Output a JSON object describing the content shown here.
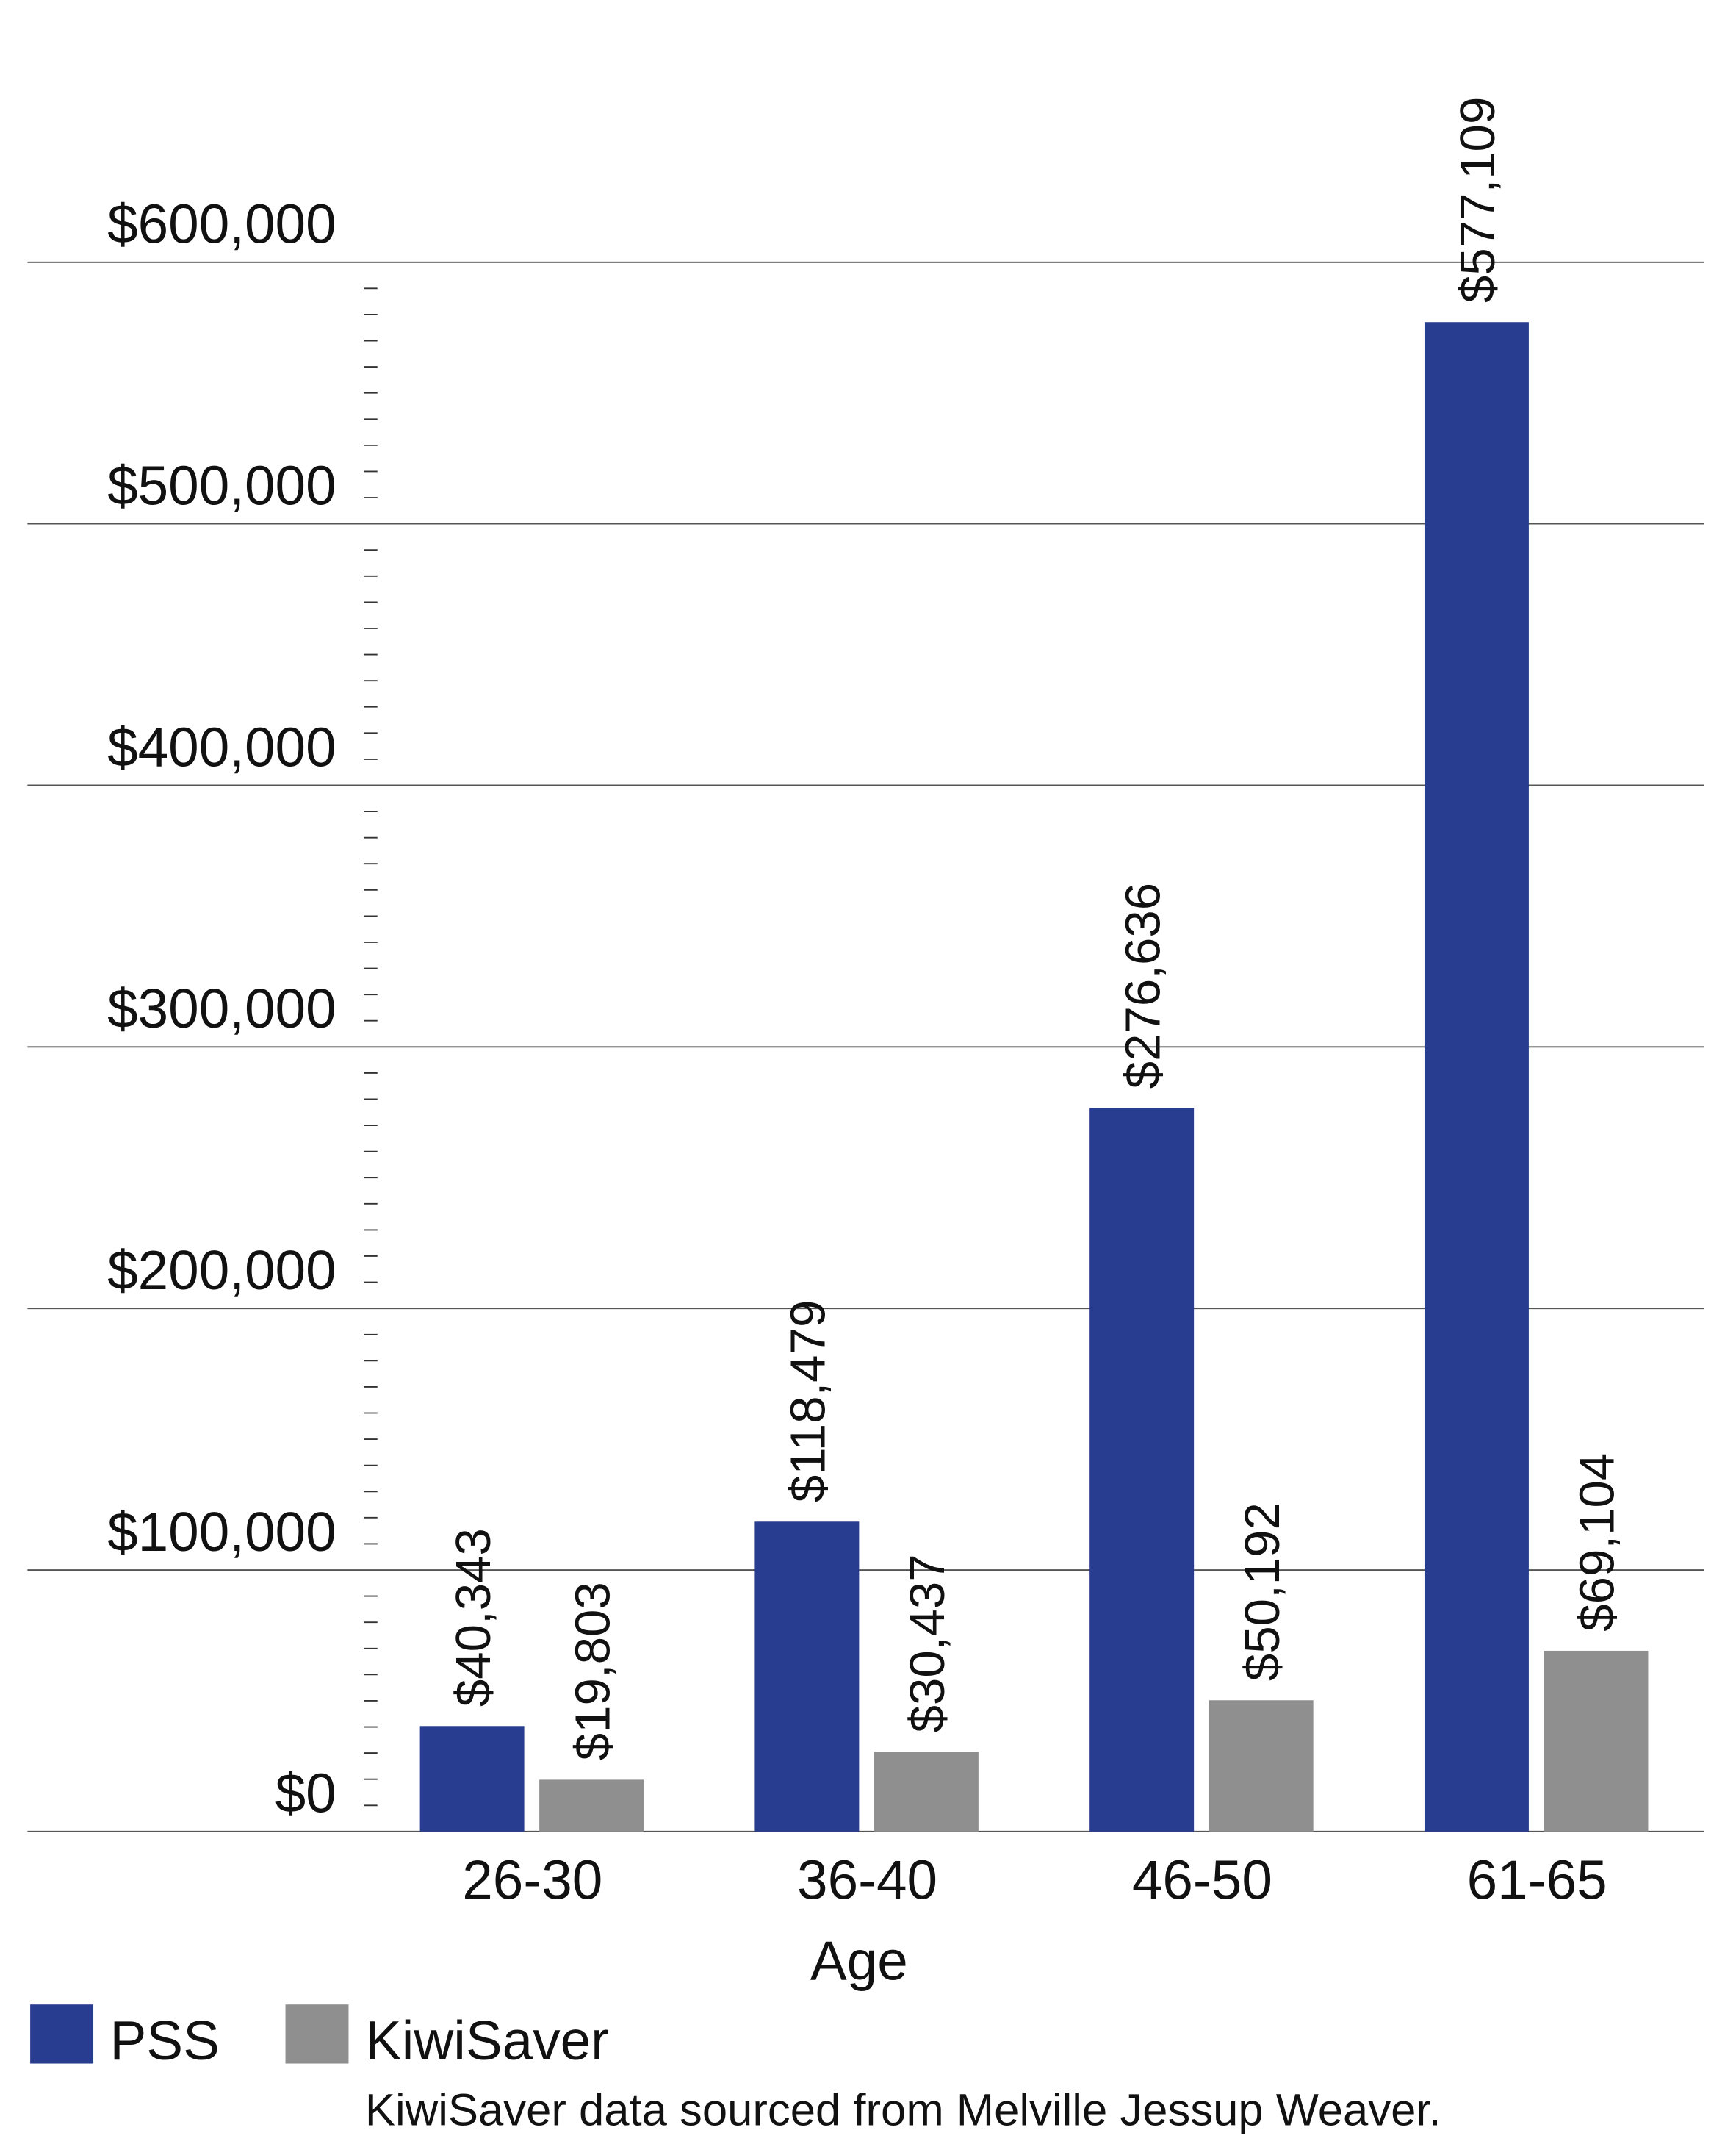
{
  "chart_data": {
    "type": "bar",
    "categories": [
      "26-30",
      "36-40",
      "46-50",
      "61-65"
    ],
    "series": [
      {
        "name": "PSS",
        "color": "#283d8f",
        "values": [
          40343,
          118479,
          276636,
          577109
        ],
        "value_labels": [
          "$40,343",
          "$118,479",
          "$276,636",
          "$577,109"
        ]
      },
      {
        "name": "KiwiSaver",
        "color": "#8f8f8f",
        "values": [
          19803,
          30437,
          50192,
          69104
        ],
        "value_labels": [
          "$19,803",
          "$30,437",
          "$50,192",
          "$69,104"
        ]
      }
    ],
    "xlabel": "Age",
    "ylim": [
      0,
      600000
    ],
    "yticks": [
      {
        "value": 0,
        "label": "$0"
      },
      {
        "value": 100000,
        "label": "$100,000"
      },
      {
        "value": 200000,
        "label": "$200,000"
      },
      {
        "value": 300000,
        "label": "$300,000"
      },
      {
        "value": 400000,
        "label": "$400,000"
      },
      {
        "value": 500000,
        "label": "$500,000"
      },
      {
        "value": 600000,
        "label": "$600,000"
      }
    ],
    "grid": true,
    "legend": "bottom-left",
    "note": "KiwiSaver data sourced from Melville Jessup Weaver."
  }
}
